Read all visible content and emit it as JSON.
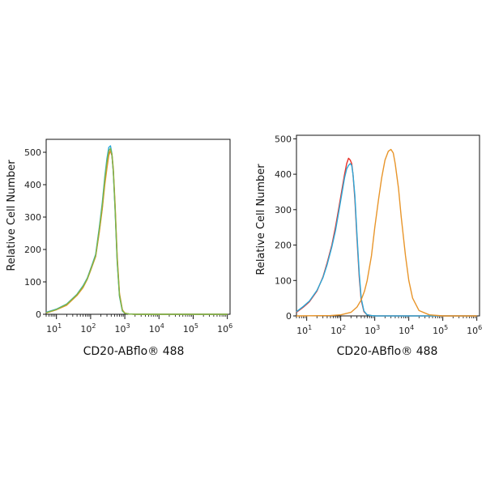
{
  "chart_data": [
    {
      "type": "line",
      "xlabel": "CD20-ABflo® 488",
      "ylabel": "Relative Cell Number",
      "xscale": "log",
      "xlim": [
        5,
        1200000
      ],
      "ylim": [
        0,
        540
      ],
      "xticks": [
        {
          "base": "10",
          "exp": "1"
        },
        {
          "base": "10",
          "exp": "2"
        },
        {
          "base": "10",
          "exp": "3"
        },
        {
          "base": "10",
          "exp": "4"
        },
        {
          "base": "10",
          "exp": "5"
        },
        {
          "base": "10",
          "exp": "6"
        }
      ],
      "yticks": [
        "0",
        "100",
        "200",
        "300",
        "400",
        "500"
      ],
      "grid": false,
      "legend": "none",
      "series": [
        {
          "color": "#e8322a",
          "x": [
            5,
            10,
            20,
            40,
            60,
            80,
            100,
            140,
            180,
            220,
            260,
            300,
            340,
            380,
            420,
            460,
            520,
            600,
            700,
            850,
            1000,
            1300,
            2000,
            10000,
            100000,
            1000000
          ],
          "y": [
            5,
            15,
            30,
            60,
            85,
            110,
            140,
            180,
            260,
            330,
            410,
            460,
            495,
            505,
            490,
            440,
            330,
            170,
            60,
            12,
            3,
            1,
            0,
            0,
            0,
            0
          ]
        },
        {
          "color": "#2aa8d8",
          "x": [
            5,
            10,
            20,
            40,
            60,
            80,
            100,
            140,
            180,
            220,
            260,
            300,
            340,
            380,
            420,
            460,
            520,
            600,
            700,
            850,
            1000,
            1300,
            2000,
            10000,
            100000,
            1000000
          ],
          "y": [
            6,
            16,
            32,
            62,
            88,
            112,
            140,
            185,
            270,
            345,
            425,
            480,
            515,
            520,
            495,
            440,
            320,
            160,
            55,
            10,
            3,
            1,
            0,
            0,
            0,
            0
          ]
        },
        {
          "color": "#e8952a",
          "x": [
            5,
            10,
            20,
            40,
            60,
            80,
            100,
            140,
            180,
            220,
            260,
            300,
            340,
            380,
            420,
            460,
            520,
            600,
            700,
            850,
            1000,
            1300,
            2000,
            10000,
            100000,
            1000000
          ],
          "y": [
            4,
            14,
            28,
            58,
            82,
            108,
            135,
            178,
            255,
            325,
            400,
            450,
            490,
            505,
            495,
            450,
            340,
            180,
            65,
            14,
            4,
            1,
            0,
            0,
            0,
            0
          ]
        },
        {
          "color": "#7ab648",
          "x": [
            5,
            10,
            20,
            40,
            60,
            80,
            100,
            140,
            180,
            220,
            260,
            300,
            340,
            380,
            420,
            460,
            520,
            600,
            700,
            850,
            1000,
            1300,
            2000,
            10000,
            100000,
            1000000
          ],
          "y": [
            5,
            15,
            31,
            61,
            86,
            110,
            138,
            182,
            265,
            338,
            418,
            470,
            505,
            512,
            492,
            442,
            325,
            165,
            58,
            11,
            3,
            1,
            0,
            0,
            0,
            0
          ]
        }
      ]
    },
    {
      "type": "line",
      "xlabel": "CD20-ABflo® 488",
      "ylabel": "Relative Cell Number",
      "xscale": "log",
      "xlim": [
        5,
        1200000
      ],
      "ylim": [
        0,
        510
      ],
      "xticks": [
        {
          "base": "10",
          "exp": "1"
        },
        {
          "base": "10",
          "exp": "2"
        },
        {
          "base": "10",
          "exp": "3"
        },
        {
          "base": "10",
          "exp": "4"
        },
        {
          "base": "10",
          "exp": "5"
        },
        {
          "base": "10",
          "exp": "6"
        }
      ],
      "yticks": [
        "0",
        "100",
        "200",
        "300",
        "400",
        "500"
      ],
      "grid": false,
      "legend": "none",
      "series": [
        {
          "color": "#e8322a",
          "x": [
            5,
            8,
            12,
            20,
            30,
            40,
            55,
            70,
            90,
            110,
            130,
            150,
            170,
            190,
            210,
            230,
            260,
            300,
            350,
            400,
            480,
            600,
            800,
            1100,
            2000,
            10000,
            100000,
            1000000
          ],
          "y": [
            10,
            25,
            40,
            70,
            110,
            150,
            200,
            250,
            310,
            360,
            400,
            430,
            445,
            440,
            430,
            400,
            330,
            220,
            110,
            45,
            12,
            3,
            1,
            0,
            0,
            0,
            0,
            0
          ]
        },
        {
          "color": "#2aa8d8",
          "x": [
            5,
            8,
            12,
            20,
            30,
            40,
            55,
            70,
            90,
            110,
            130,
            150,
            170,
            190,
            210,
            230,
            260,
            300,
            350,
            400,
            480,
            600,
            800,
            1100,
            2000,
            10000,
            100000,
            1000000
          ],
          "y": [
            12,
            27,
            42,
            72,
            108,
            145,
            195,
            240,
            300,
            350,
            390,
            415,
            425,
            430,
            425,
            400,
            340,
            230,
            120,
            50,
            14,
            3,
            1,
            0,
            0,
            0,
            0,
            0
          ]
        },
        {
          "color": "#e8952a",
          "x": [
            5,
            50,
            100,
            200,
            300,
            400,
            500,
            600,
            800,
            1000,
            1300,
            1600,
            2000,
            2500,
            3000,
            3500,
            4000,
            5000,
            6000,
            8000,
            10000,
            13000,
            20000,
            40000,
            100000,
            1000000
          ],
          "y": [
            0,
            1,
            3,
            10,
            25,
            45,
            70,
            100,
            170,
            250,
            330,
            390,
            440,
            465,
            470,
            460,
            430,
            360,
            280,
            170,
            100,
            50,
            15,
            3,
            0,
            0
          ]
        }
      ]
    }
  ]
}
